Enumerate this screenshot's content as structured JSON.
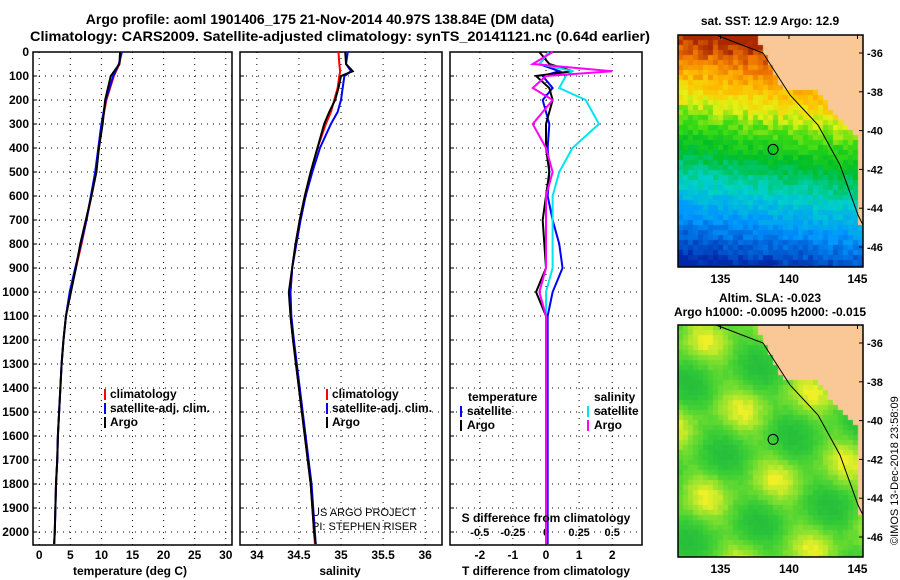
{
  "title": {
    "line1": "Argo profile: aoml 1901406_175 21-Nov-2014 40.97S 138.84E (DM data)",
    "line2": "Climatology: CARS2009. Satellite-adjusted climatology: synTS_20141121.nc (0.64d earlier)"
  },
  "credit": {
    "project": "US ARGO PROJECT",
    "pi": "PI: STEPHEN RISER",
    "imos": "©IMOS 13-Dec-2018 23:58:09"
  },
  "colors": {
    "clim": "#ff0000",
    "sat": "#0000ff",
    "argo": "#000000",
    "sal_sat": "#00e5ee",
    "sal_argo": "#ff00ff"
  },
  "chart_data": [
    {
      "type": "line",
      "name": "temperature",
      "xlabel": "temperature (deg C)",
      "xlim": [
        -1,
        31
      ],
      "xticks": [
        0,
        5,
        10,
        15,
        20,
        25,
        30
      ],
      "ylim": [
        0,
        2140
      ],
      "yticks": [
        0,
        100,
        200,
        300,
        400,
        500,
        600,
        700,
        800,
        900,
        1000,
        1100,
        1200,
        1300,
        1400,
        1500,
        1600,
        1700,
        1800,
        1900,
        2000
      ],
      "legend": [
        "climatology",
        "satellite-adj. clim.",
        "Argo"
      ],
      "depth": [
        0,
        50,
        100,
        200,
        300,
        400,
        500,
        600,
        700,
        800,
        900,
        1000,
        1100,
        1200,
        1300,
        1400,
        1500,
        1600,
        1700,
        1800,
        1900,
        2000,
        2050
      ],
      "series": [
        {
          "name": "climatology",
          "values": [
            13.2,
            12.9,
            12.0,
            10.8,
            10.1,
            9.6,
            9.1,
            8.4,
            7.6,
            6.8,
            5.9,
            5.0,
            4.3,
            3.9,
            3.6,
            3.4,
            3.2,
            3.0,
            2.9,
            2.7,
            2.6,
            2.5,
            2.4
          ]
        },
        {
          "name": "satellite-adj. clim.",
          "values": [
            13.3,
            12.8,
            11.9,
            10.7,
            10.0,
            9.5,
            9.0,
            8.3,
            7.6,
            6.7,
            5.8,
            4.9,
            4.3,
            3.9,
            3.6,
            3.4,
            3.2,
            3.0,
            2.9,
            2.7,
            2.6,
            2.5,
            2.4
          ]
        },
        {
          "name": "Argo",
          "values": [
            13.0,
            12.9,
            11.5,
            10.6,
            10.2,
            9.6,
            9.2,
            8.4,
            7.5,
            6.6,
            5.9,
            5.1,
            4.3,
            3.9,
            3.6,
            3.4,
            3.2,
            3.0,
            2.9,
            2.7,
            2.6,
            2.5,
            2.4
          ]
        }
      ]
    },
    {
      "type": "line",
      "name": "salinity",
      "xlabel": "salinity",
      "xlim": [
        33.8,
        36.2
      ],
      "xticks": [
        34,
        34.5,
        35,
        35.5,
        36
      ],
      "legend": [
        "climatology",
        "satellite-adj. clim.",
        "Argo"
      ],
      "depth": [
        0,
        50,
        80,
        100,
        150,
        200,
        250,
        300,
        400,
        500,
        600,
        700,
        800,
        900,
        1000,
        1100,
        1200,
        1400,
        1600,
        1800,
        2000,
        2050
      ],
      "series": [
        {
          "name": "climatology",
          "values": [
            34.97,
            34.98,
            34.99,
            34.98,
            34.96,
            34.92,
            34.88,
            34.82,
            34.72,
            34.64,
            34.57,
            34.51,
            34.46,
            34.42,
            34.4,
            34.4,
            34.43,
            34.5,
            34.57,
            34.64,
            34.68,
            34.69
          ]
        },
        {
          "name": "satellite-adj. clim.",
          "values": [
            35.08,
            35.06,
            35.12,
            35.04,
            35.02,
            35.0,
            34.96,
            34.88,
            34.75,
            34.66,
            34.58,
            34.52,
            34.47,
            34.42,
            34.4,
            34.41,
            34.44,
            34.51,
            34.58,
            34.65,
            34.69,
            34.7
          ]
        },
        {
          "name": "Argo",
          "values": [
            35.05,
            35.06,
            35.14,
            35.0,
            34.97,
            34.93,
            34.86,
            34.8,
            34.72,
            34.64,
            34.57,
            34.51,
            34.46,
            34.42,
            34.38,
            34.4,
            34.43,
            34.5,
            34.57,
            34.64,
            34.68,
            34.7
          ]
        }
      ]
    },
    {
      "type": "line",
      "name": "difference",
      "xlabel": "T difference from climatology",
      "x2label": "S difference from climatology",
      "xlim": [
        -2.9,
        2.9
      ],
      "xticks": [
        -2,
        -1,
        0,
        1,
        2
      ],
      "x2ticks": [
        "-0.5",
        "-0.25",
        "0",
        "0.25",
        "0.5"
      ],
      "legend_t_title": "temperature",
      "legend_s_title": "salinity",
      "legend": [
        "satellite",
        "Argo"
      ],
      "depth": [
        0,
        50,
        80,
        100,
        150,
        200,
        300,
        400,
        500,
        600,
        700,
        800,
        900,
        1000,
        1100,
        1200,
        1500,
        1800,
        2000,
        2050
      ],
      "series": [
        {
          "name": "T satellite",
          "values": [
            0.1,
            -0.2,
            0.4,
            -0.1,
            0.2,
            -0.1,
            0.1,
            0.05,
            0.1,
            0.05,
            0.2,
            0.4,
            0.5,
            0.2,
            0.05,
            0.05,
            0.05,
            0.05,
            0.05,
            0.05
          ]
        },
        {
          "name": "T Argo",
          "values": [
            -0.2,
            0.1,
            0.8,
            -0.3,
            0.1,
            0.2,
            0.0,
            0.0,
            0.1,
            0.0,
            -0.1,
            -0.05,
            0.0,
            -0.3,
            0.0,
            0.0,
            0.0,
            0.0,
            0.0,
            0.0
          ]
        },
        {
          "name": "S satellite",
          "values": [
            0.02,
            -0.05,
            0.2,
            0.15,
            0.1,
            0.3,
            0.4,
            0.2,
            0.1,
            0.05,
            0.05,
            0.05,
            0.05,
            0.0,
            0.0,
            0.0,
            0.0,
            0.0,
            0.0,
            0.0
          ]
        },
        {
          "name": "S Argo",
          "values": [
            0.05,
            -0.1,
            0.5,
            0.0,
            -0.1,
            0.05,
            -0.1,
            0.0,
            0.05,
            0.0,
            0.0,
            0.0,
            0.0,
            -0.05,
            0.0,
            0.0,
            0.0,
            0.0,
            0.0,
            0.0
          ]
        }
      ]
    }
  ],
  "maps": [
    {
      "title": "sat. SST: 12.9 Argo: 12.9",
      "xticks": [
        "135",
        "140",
        "145"
      ],
      "yticks": [
        "-36",
        "-38",
        "-40",
        "-42",
        "-44",
        "-46"
      ],
      "kind": "sst"
    },
    {
      "title": "Altim. SLA: -0.023",
      "subtitle": "Argo h1000: -0.0095 h2000: -0.015",
      "xticks": [
        "135",
        "140",
        "145"
      ],
      "yticks": [
        "-36",
        "-38",
        "-40",
        "-42",
        "-44",
        "-46"
      ],
      "kind": "sla"
    }
  ],
  "float_position": {
    "lon": 138.84,
    "lat": -40.97
  }
}
